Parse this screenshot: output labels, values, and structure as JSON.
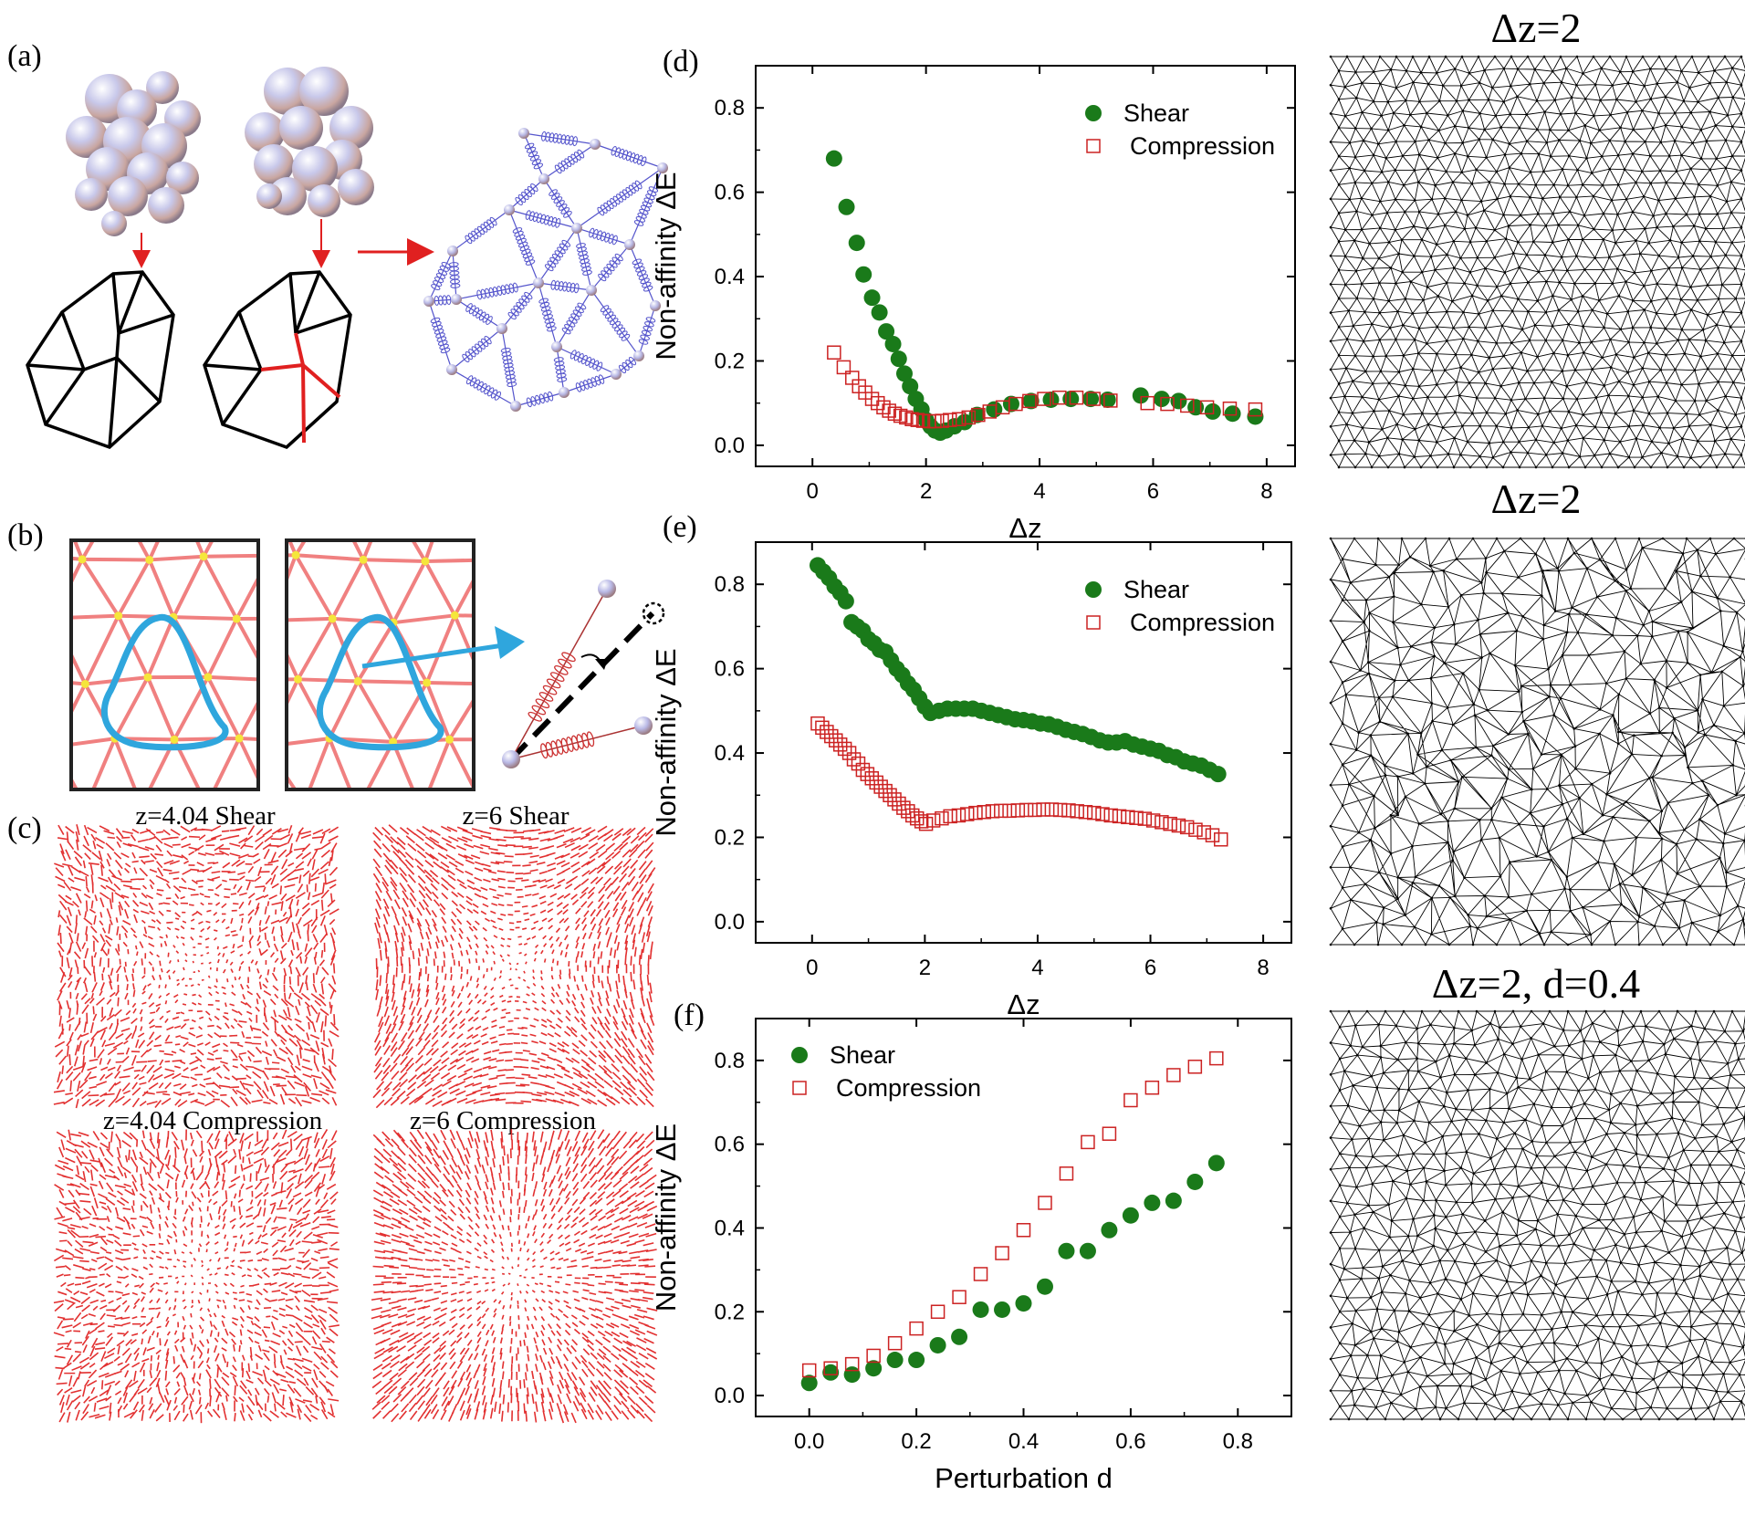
{
  "colors": {
    "shear": "#1a7a1a",
    "compression": "#cc2222",
    "network": "#000000",
    "spring": "#5555cc",
    "field": "#e23030",
    "loop": "#2fa6dd",
    "lattice": "#f08080",
    "node": "#f5e63b"
  },
  "labels": {
    "a": "(a)",
    "b": "(b)",
    "c": "(c)",
    "d": "(d)",
    "e": "(e)",
    "f": "(f)"
  },
  "panel_c": {
    "titles": [
      "z=4.04 Shear",
      "z=6 Shear",
      "z=4.04 Compression",
      "z=6 Compression"
    ]
  },
  "network_titles": [
    "Δz=2",
    "Δz=2",
    "Δz=2, d=0.4"
  ],
  "chart_data": [
    {
      "id": "d",
      "type": "scatter",
      "xlabel": "Δz",
      "ylabel": "Non-affinity ΔE",
      "xlim": [
        -1,
        8.5
      ],
      "ylim": [
        -0.05,
        0.9
      ],
      "xticks": [
        0,
        2,
        4,
        6,
        8
      ],
      "yticks": [
        0.0,
        0.2,
        0.4,
        0.6,
        0.8
      ],
      "xtick_labels": [
        "0",
        "2",
        "4",
        "6",
        "8"
      ],
      "ytick_labels": [
        "0.0",
        "0.2",
        "0.4",
        "0.6",
        "0.8"
      ],
      "legend_position": "top-right",
      "series": [
        {
          "name": "Shear",
          "marker": "filled-circle",
          "x": [
            0.38,
            0.6,
            0.78,
            0.9,
            1.05,
            1.18,
            1.3,
            1.42,
            1.52,
            1.62,
            1.72,
            1.82,
            1.92,
            2.0,
            2.08,
            2.16,
            2.25,
            2.35,
            2.5,
            2.68,
            2.9,
            3.2,
            3.5,
            3.85,
            4.2,
            4.55,
            4.9,
            5.2,
            5.78,
            6.15,
            6.45,
            6.75,
            7.05,
            7.4,
            7.8
          ],
          "y": [
            0.68,
            0.565,
            0.48,
            0.405,
            0.35,
            0.315,
            0.27,
            0.24,
            0.205,
            0.17,
            0.14,
            0.11,
            0.085,
            0.06,
            0.045,
            0.035,
            0.03,
            0.035,
            0.045,
            0.055,
            0.072,
            0.085,
            0.098,
            0.105,
            0.108,
            0.11,
            0.11,
            0.108,
            0.118,
            0.11,
            0.105,
            0.09,
            0.08,
            0.075,
            0.068
          ]
        },
        {
          "name": "Compression",
          "marker": "open-square",
          "x": [
            0.38,
            0.55,
            0.7,
            0.82,
            0.93,
            1.05,
            1.15,
            1.25,
            1.35,
            1.45,
            1.55,
            1.65,
            1.75,
            1.85,
            1.95,
            2.05,
            2.15,
            2.28,
            2.42,
            2.58,
            2.75,
            2.92,
            3.12,
            3.35,
            3.58,
            3.82,
            4.08,
            4.35,
            4.65,
            4.95,
            5.25,
            5.9,
            6.25,
            6.6,
            6.95,
            7.35,
            7.8
          ],
          "y": [
            0.22,
            0.185,
            0.16,
            0.14,
            0.125,
            0.11,
            0.1,
            0.09,
            0.082,
            0.075,
            0.07,
            0.066,
            0.062,
            0.06,
            0.058,
            0.057,
            0.057,
            0.058,
            0.06,
            0.062,
            0.066,
            0.072,
            0.08,
            0.09,
            0.098,
            0.105,
            0.11,
            0.113,
            0.113,
            0.11,
            0.106,
            0.1,
            0.098,
            0.094,
            0.09,
            0.087,
            0.085
          ]
        }
      ]
    },
    {
      "id": "e",
      "type": "scatter",
      "xlabel": "Δz",
      "ylabel": "Non-affinity ΔE",
      "xlim": [
        -1,
        8.5
      ],
      "ylim": [
        -0.05,
        0.9
      ],
      "xticks": [
        0,
        2,
        4,
        6,
        8
      ],
      "yticks": [
        0.0,
        0.2,
        0.4,
        0.6,
        0.8
      ],
      "xtick_labels": [
        "0",
        "2",
        "4",
        "6",
        "8"
      ],
      "ytick_labels": [
        "0.0",
        "0.2",
        "0.4",
        "0.6",
        "0.8"
      ],
      "legend_position": "top-right",
      "series": [
        {
          "name": "Shear",
          "marker": "filled-circle",
          "x": [
            0.1,
            0.2,
            0.3,
            0.4,
            0.5,
            0.6,
            0.7,
            0.8,
            0.9,
            1.0,
            1.1,
            1.2,
            1.3,
            1.4,
            1.5,
            1.6,
            1.7,
            1.8,
            1.9,
            2.0,
            2.1,
            2.25,
            2.4,
            2.55,
            2.7,
            2.85,
            3.0,
            3.15,
            3.3,
            3.45,
            3.6,
            3.75,
            3.9,
            4.05,
            4.2,
            4.35,
            4.5,
            4.65,
            4.8,
            4.95,
            5.1,
            5.25,
            5.4,
            5.55,
            5.7,
            5.85,
            6.0,
            6.15,
            6.3,
            6.45,
            6.6,
            6.75,
            6.9,
            7.05,
            7.2
          ],
          "y": [
            0.845,
            0.83,
            0.815,
            0.795,
            0.78,
            0.76,
            0.71,
            0.7,
            0.69,
            0.67,
            0.66,
            0.645,
            0.64,
            0.62,
            0.6,
            0.585,
            0.565,
            0.55,
            0.53,
            0.51,
            0.495,
            0.5,
            0.505,
            0.505,
            0.505,
            0.505,
            0.5,
            0.495,
            0.49,
            0.485,
            0.48,
            0.478,
            0.475,
            0.47,
            0.468,
            0.462,
            0.455,
            0.45,
            0.445,
            0.438,
            0.43,
            0.425,
            0.425,
            0.428,
            0.42,
            0.415,
            0.41,
            0.405,
            0.395,
            0.39,
            0.38,
            0.375,
            0.37,
            0.36,
            0.35
          ]
        },
        {
          "name": "Compression",
          "marker": "open-square",
          "x": [
            0.1,
            0.18,
            0.26,
            0.34,
            0.42,
            0.5,
            0.58,
            0.66,
            0.74,
            0.82,
            0.9,
            0.98,
            1.06,
            1.14,
            1.22,
            1.3,
            1.38,
            1.46,
            1.54,
            1.62,
            1.7,
            1.78,
            1.86,
            1.94,
            2.02,
            2.15,
            2.3,
            2.45,
            2.6,
            2.75,
            2.9,
            3.05,
            3.2,
            3.35,
            3.5,
            3.65,
            3.8,
            3.95,
            4.1,
            4.25,
            4.4,
            4.55,
            4.7,
            4.85,
            5.0,
            5.15,
            5.3,
            5.45,
            5.6,
            5.75,
            5.9,
            6.05,
            6.2,
            6.35,
            6.5,
            6.65,
            6.8,
            6.95,
            7.1,
            7.25
          ],
          "y": [
            0.47,
            0.46,
            0.45,
            0.44,
            0.43,
            0.42,
            0.41,
            0.4,
            0.385,
            0.375,
            0.36,
            0.35,
            0.34,
            0.33,
            0.32,
            0.31,
            0.3,
            0.29,
            0.28,
            0.27,
            0.262,
            0.252,
            0.245,
            0.238,
            0.232,
            0.24,
            0.245,
            0.25,
            0.252,
            0.255,
            0.258,
            0.26,
            0.262,
            0.263,
            0.263,
            0.264,
            0.265,
            0.265,
            0.266,
            0.266,
            0.265,
            0.264,
            0.262,
            0.26,
            0.258,
            0.255,
            0.252,
            0.25,
            0.248,
            0.246,
            0.244,
            0.24,
            0.236,
            0.232,
            0.228,
            0.224,
            0.218,
            0.212,
            0.205,
            0.195
          ]
        }
      ]
    },
    {
      "id": "f",
      "type": "scatter",
      "xlabel": "Perturbation d",
      "ylabel": "Non-affinity ΔE",
      "xlim": [
        -0.1,
        0.9
      ],
      "ylim": [
        -0.05,
        0.9
      ],
      "xticks": [
        0.0,
        0.2,
        0.4,
        0.6,
        0.8
      ],
      "yticks": [
        0.0,
        0.2,
        0.4,
        0.6,
        0.8
      ],
      "xtick_labels": [
        "0.0",
        "0.2",
        "0.4",
        "0.6",
        "0.8"
      ],
      "ytick_labels": [
        "0.0",
        "0.2",
        "0.4",
        "0.6",
        "0.8"
      ],
      "legend_position": "top-left",
      "series": [
        {
          "name": "Shear",
          "marker": "filled-circle",
          "x": [
            0.0,
            0.04,
            0.08,
            0.12,
            0.16,
            0.2,
            0.24,
            0.28,
            0.32,
            0.36,
            0.4,
            0.44,
            0.48,
            0.52,
            0.56,
            0.6,
            0.64,
            0.68,
            0.72,
            0.76
          ],
          "y": [
            0.03,
            0.055,
            0.05,
            0.065,
            0.085,
            0.085,
            0.12,
            0.14,
            0.205,
            0.205,
            0.22,
            0.26,
            0.345,
            0.345,
            0.395,
            0.43,
            0.46,
            0.465,
            0.51,
            0.555
          ]
        },
        {
          "name": "Compression",
          "marker": "open-square",
          "x": [
            0.0,
            0.04,
            0.08,
            0.12,
            0.16,
            0.2,
            0.24,
            0.28,
            0.32,
            0.36,
            0.4,
            0.44,
            0.48,
            0.52,
            0.56,
            0.6,
            0.64,
            0.68,
            0.72,
            0.76
          ],
          "y": [
            0.06,
            0.065,
            0.075,
            0.095,
            0.125,
            0.16,
            0.2,
            0.235,
            0.29,
            0.34,
            0.395,
            0.46,
            0.53,
            0.605,
            0.625,
            0.705,
            0.735,
            0.765,
            0.785,
            0.805
          ]
        }
      ]
    }
  ]
}
